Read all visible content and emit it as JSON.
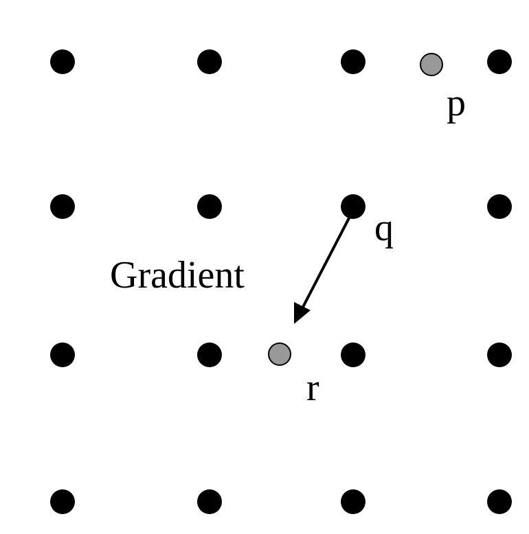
{
  "labels": {
    "p": "p",
    "q": "q",
    "r": "r",
    "gradient": "Gradient"
  },
  "colors": {
    "grid_point": "#000000",
    "interpolated_point": "#999999",
    "outline": "#000000",
    "arrow": "#000000"
  }
}
